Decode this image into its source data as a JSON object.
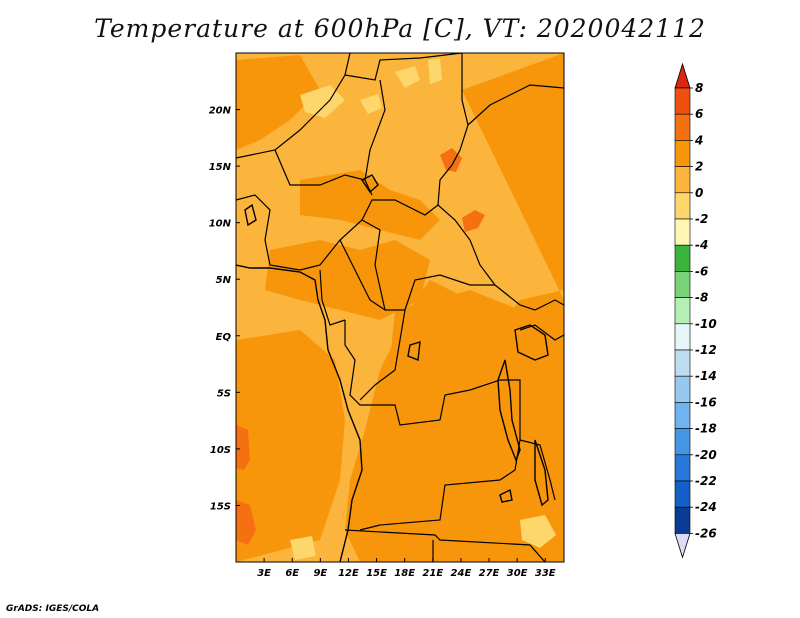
{
  "title": "Temperature at 600hPa [C], VT: 2020042112",
  "credit": "GrADS: IGES/COLA",
  "chart_data": {
    "type": "heatmap",
    "variable": "Temperature at 600hPa",
    "units": "C",
    "valid_time": "2020042112",
    "xlim": [
      0,
      35
    ],
    "ylim": [
      -20,
      25
    ],
    "x_ticks": [
      3,
      6,
      9,
      12,
      15,
      18,
      21,
      24,
      27,
      30,
      33
    ],
    "x_tick_labels": [
      "3E",
      "6E",
      "9E",
      "12E",
      "15E",
      "18E",
      "21E",
      "24E",
      "27E",
      "30E",
      "33E"
    ],
    "y_ticks": [
      -15,
      -10,
      -5,
      0,
      5,
      10,
      15,
      20
    ],
    "y_tick_labels": [
      "15S",
      "10S",
      "5S",
      "EQ",
      "5N",
      "10N",
      "15N",
      "20N"
    ],
    "colorbar": {
      "levels": [
        8,
        6,
        4,
        2,
        0,
        -2,
        -4,
        -6,
        -8,
        -10,
        -12,
        -14,
        -16,
        -18,
        -20,
        -22,
        -24,
        -26
      ],
      "colors": [
        "#d9260f",
        "#f0500f",
        "#f57010",
        "#f7960b",
        "#fbb43c",
        "#fdd76c",
        "#fef7b4",
        "#3ab43c",
        "#78d278",
        "#b4f0b4",
        "#e6f5f5",
        "#bedcf0",
        "#96c8f0",
        "#6eb4f0",
        "#4696e6",
        "#2878dc",
        "#1460c8",
        "#0a3c96",
        "#000f5a",
        "#dcdcf5"
      ]
    },
    "dominant_range": [
      2,
      4
    ],
    "features": [
      {
        "name": "warm patches",
        "range": [
          4,
          6
        ],
        "location": "Atlantic coast near 10S-15S and Chad/Sudan border near 14N, 10N"
      },
      {
        "name": "cool patches",
        "range": [
          -2,
          2
        ],
        "location": "Sahara north of 18N and southern Angola/Zambia"
      }
    ]
  }
}
